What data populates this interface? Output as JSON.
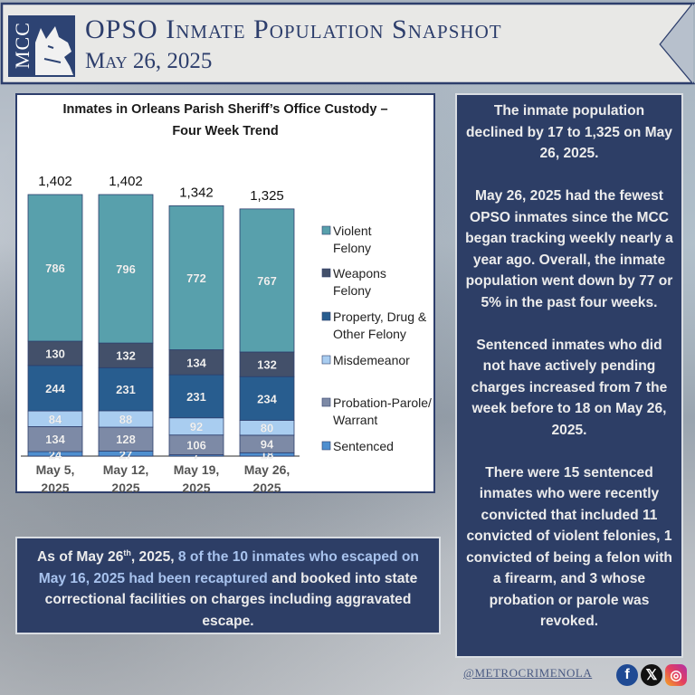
{
  "header": {
    "logo_text": "MCC",
    "title": "OPSO Inmate Population Snapshot",
    "date": "May 26, 2025"
  },
  "chart_data": {
    "type": "bar",
    "stacked": true,
    "title": "Inmates in Orleans Parish Sheriff’s Office Custody – Four Week Trend",
    "title_lines": [
      "Inmates in Orleans Parish Sheriff’s Office Custody –",
      "Four Week Trend"
    ],
    "categories": [
      "May 5, 2025",
      "May 12, 2025",
      "May 19, 2025",
      "May 26, 2025"
    ],
    "category_lines": [
      [
        "May 5,",
        "2025"
      ],
      [
        "May 12,",
        "2025"
      ],
      [
        "May 19,",
        "2025"
      ],
      [
        "May 26,",
        "2025"
      ]
    ],
    "totals": [
      "1,402",
      "1,402",
      "1,342",
      "1,325"
    ],
    "total_values": [
      1402,
      1402,
      1342,
      1325
    ],
    "series": [
      {
        "name": "Sentenced",
        "legend_lines": [
          "Sentenced"
        ],
        "color": "#4f8fcf",
        "values": [
          24,
          27,
          7,
          18
        ]
      },
      {
        "name": "Probation-Parole/ Warrant",
        "legend_lines": [
          "Probation-Parole/",
          "Warrant"
        ],
        "color": "#7d8aa6",
        "values": [
          134,
          128,
          106,
          94
        ]
      },
      {
        "name": "Misdemeanor",
        "legend_lines": [
          "Misdemeanor"
        ],
        "color": "#a9cdf0",
        "values": [
          84,
          88,
          92,
          80
        ]
      },
      {
        "name": "Property, Drug & Other Felony",
        "legend_lines": [
          "Property, Drug &",
          "Other Felony"
        ],
        "color": "#285d8f",
        "values": [
          244,
          231,
          231,
          234
        ]
      },
      {
        "name": "Weapons Felony",
        "legend_lines": [
          "Weapons",
          "Felony"
        ],
        "color": "#43506a",
        "values": [
          130,
          132,
          134,
          132
        ]
      },
      {
        "name": "Violent Felony",
        "legend_lines": [
          "Violent",
          "Felony"
        ],
        "color": "#58a0ac",
        "values": [
          786,
          796,
          772,
          767
        ]
      }
    ],
    "legend_position": "right",
    "ylim": [
      0,
      1402
    ],
    "grid": false
  },
  "summary": {
    "paragraphs": [
      "The inmate population declined by 17 to 1,325 on May 26, 2025.",
      "May 26, 2025 had the fewest OPSO inmates since the MCC began tracking weekly nearly a year ago. Overall, the inmate population went down by 77 or 5% in the past four weeks.",
      "Sentenced inmates who did not have actively pending charges increased from 7 the week before to 18 on May 26, 2025.",
      "There were 15 sentenced inmates who were recently convicted that included 11 convicted of violent felonies, 1 convicted of being a felon with a firearm, and 3 whose probation or parole was revoked."
    ]
  },
  "escape_note": {
    "prefix": "As of May 26",
    "sup": "th",
    "after_sup": ", 2025, ",
    "highlight": "8 of the 10 inmates who escaped on May 16, 2025 had been recaptured",
    "suffix": " and booked into state correctional facilities on charges including aggravated escape."
  },
  "footer": {
    "handle": "@METROCRIMENOLA",
    "social": [
      {
        "icon": "facebook-icon",
        "glyph": "f",
        "color": "#1f4a94"
      },
      {
        "icon": "x-icon",
        "glyph": "𝕏",
        "color": "#111111"
      },
      {
        "icon": "instagram-icon",
        "glyph": "◎",
        "color": "#e4405f"
      }
    ]
  }
}
